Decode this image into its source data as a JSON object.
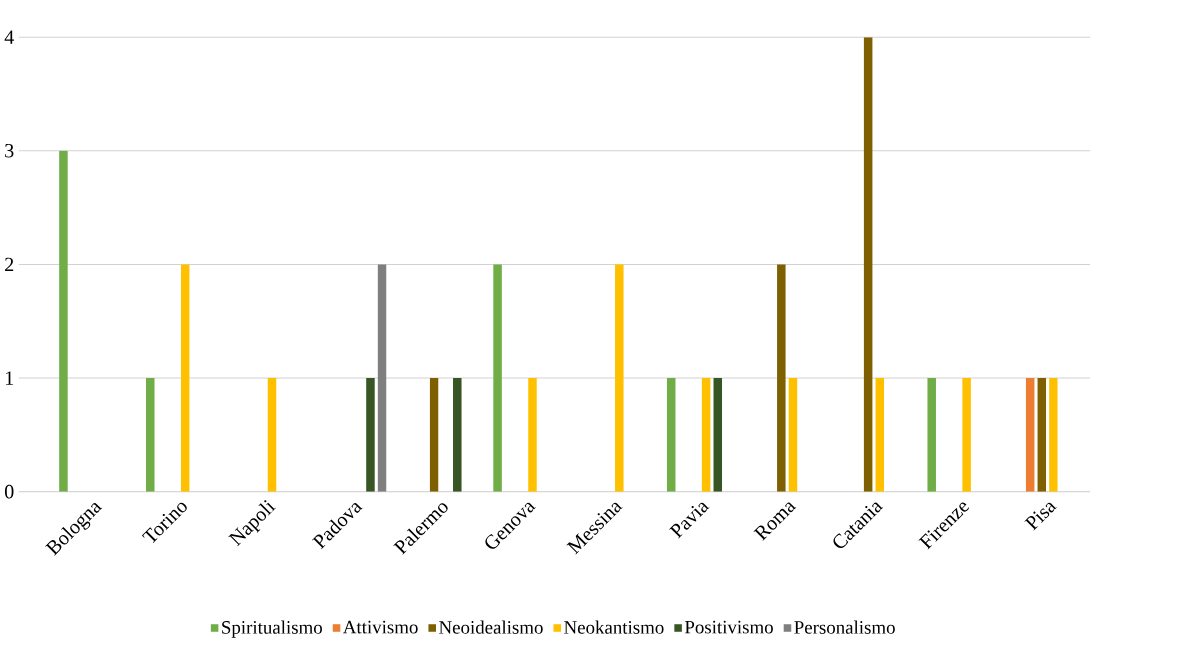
{
  "chart_data": {
    "type": "bar",
    "categories": [
      "Bologna",
      "Torino",
      "Napoli",
      "Padova",
      "Palermo",
      "Genova",
      "Messina",
      "Pavia",
      "Roma",
      "Catania",
      "Firenze",
      "Pisa"
    ],
    "series": [
      {
        "name": "Spiritualismo",
        "color": "#70ad47",
        "values": [
          3,
          1,
          null,
          null,
          null,
          2,
          null,
          1,
          null,
          null,
          1,
          null
        ]
      },
      {
        "name": "Attivismo",
        "color": "#ed7d31",
        "values": [
          null,
          null,
          null,
          null,
          null,
          null,
          null,
          null,
          null,
          null,
          null,
          1
        ]
      },
      {
        "name": "Neoidealismo",
        "color": "#7f6000",
        "values": [
          null,
          null,
          null,
          null,
          1,
          null,
          null,
          null,
          2,
          4,
          null,
          1
        ]
      },
      {
        "name": "Neokantismo",
        "color": "#ffc000",
        "values": [
          null,
          2,
          1,
          null,
          null,
          1,
          2,
          1,
          1,
          1,
          1,
          1
        ]
      },
      {
        "name": "Positivismo",
        "color": "#375623",
        "values": [
          null,
          null,
          null,
          1,
          1,
          null,
          null,
          1,
          null,
          null,
          null,
          null
        ]
      },
      {
        "name": "Personalismo",
        "color": "#7f7f7f",
        "values": [
          null,
          null,
          null,
          2,
          null,
          null,
          null,
          null,
          null,
          null,
          null,
          null
        ]
      }
    ],
    "ylim": [
      0,
      4
    ],
    "yticks": [
      0,
      1,
      2,
      3,
      4
    ],
    "grid": "y",
    "legend": "bottom"
  }
}
